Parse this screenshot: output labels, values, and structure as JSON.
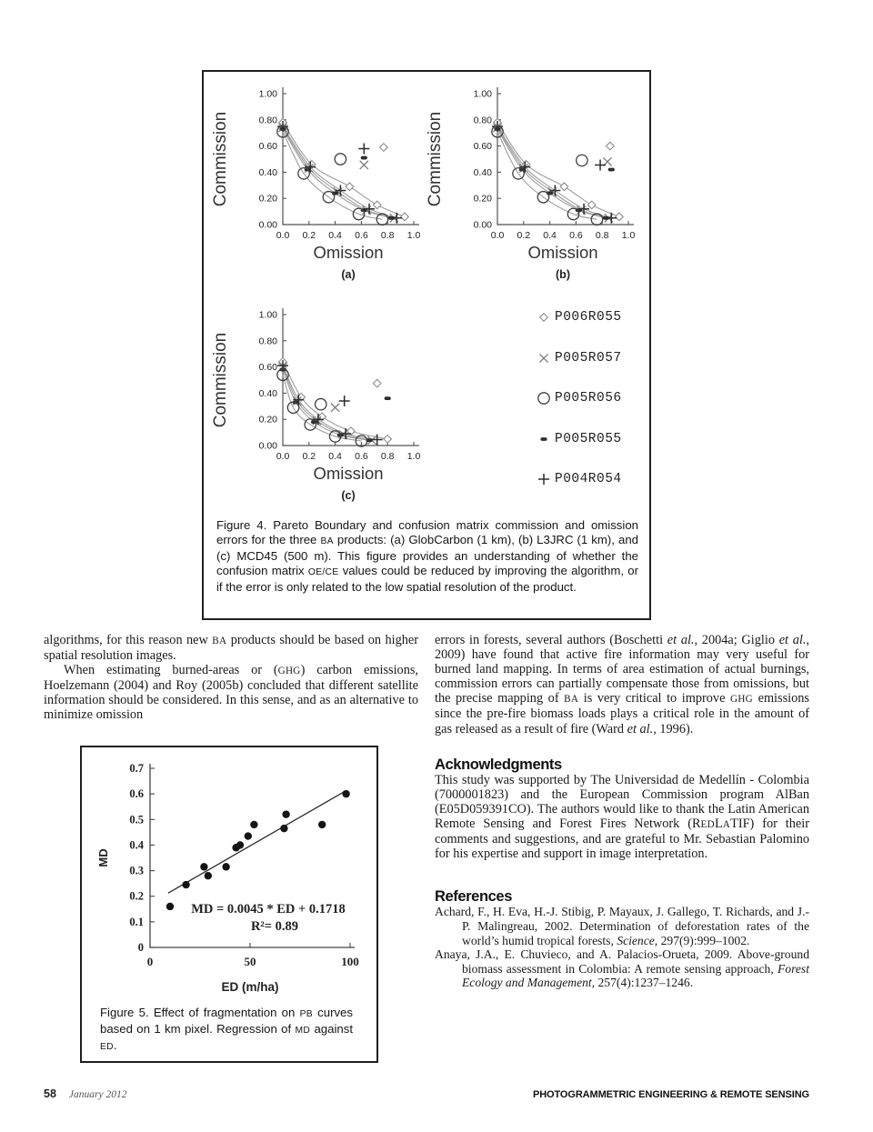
{
  "figure4": {
    "caption_html": "Figure 4. Pareto Boundary and confusion matrix commission and omission errors for the three <span class='sc'>BA</span> products: (a) GlobCarbon (1 km), (b) L3JRC (1 km), and (c) MCD45 (500 m). This figure provides an understanding of whether the confusion matrix <span class='sc'>OE/CE</span> values could be reduced by improving the algorithm, or if the error is only related to the low spatial resolution of the product.",
    "legend": [
      {
        "marker": "diamond",
        "label": "P006R055"
      },
      {
        "marker": "x",
        "label": "P005R057"
      },
      {
        "marker": "circle",
        "label": "P005R056"
      },
      {
        "marker": "bar",
        "label": "P005R055"
      },
      {
        "marker": "plus",
        "label": "P004R054"
      }
    ]
  },
  "figure5": {
    "caption_html": "Figure 5. Effect of fragmentation on <span class='sc'>PB</span> curves based on 1 km pixel. Regression of <span class='sc'>MD</span> against <span class='sc'>ED</span>."
  },
  "chart_data": [
    {
      "id": "fig4a",
      "type": "line",
      "title": "(a)",
      "xlabel": "Omission",
      "ylabel": "Commission",
      "xlim": [
        0,
        1
      ],
      "ylim": [
        0,
        1
      ],
      "x_ticks": [
        "0.0",
        "0.2",
        "0.4",
        "0.6",
        "0.8",
        "1.0"
      ],
      "y_ticks": [
        "0.00",
        "0.20",
        "0.40",
        "0.60",
        "0.80",
        "1.00"
      ],
      "series": [
        {
          "name": "P006R055",
          "marker": "diamond",
          "curve": [
            [
              0,
              0.78
            ],
            [
              0.22,
              0.46
            ],
            [
              0.51,
              0.29
            ],
            [
              0.72,
              0.15
            ],
            [
              0.93,
              0.06
            ]
          ],
          "outlier": [
            0.77,
            0.59
          ]
        },
        {
          "name": "P005R057",
          "marker": "x",
          "curve": [
            [
              0,
              0.74
            ],
            [
              0.2,
              0.43
            ],
            [
              0.42,
              0.25
            ],
            [
              0.64,
              0.11
            ],
            [
              0.85,
              0.05
            ]
          ],
          "outlier": [
            0.62,
            0.455
          ]
        },
        {
          "name": "P005R055",
          "marker": "bar",
          "curve": [
            [
              0,
              0.73
            ],
            [
              0.19,
              0.42
            ],
            [
              0.4,
              0.24
            ],
            [
              0.62,
              0.11
            ],
            [
              0.83,
              0.05
            ]
          ],
          "outlier": [
            0.62,
            0.51
          ]
        },
        {
          "name": "P004R054",
          "marker": "plus",
          "curve": [
            [
              0,
              0.75
            ],
            [
              0.21,
              0.44
            ],
            [
              0.44,
              0.26
            ],
            [
              0.66,
              0.12
            ],
            [
              0.87,
              0.05
            ]
          ],
          "outlier": [
            0.62,
            0.58
          ]
        },
        {
          "name": "P005R056",
          "marker": "circle",
          "curve": [
            [
              0,
              0.71
            ],
            [
              0.16,
              0.39
            ],
            [
              0.35,
              0.21
            ],
            [
              0.58,
              0.08
            ],
            [
              0.76,
              0.04
            ]
          ],
          "outlier": [
            0.44,
            0.5
          ]
        }
      ]
    },
    {
      "id": "fig4b",
      "type": "line",
      "title": "(b)",
      "xlabel": "Omission",
      "ylabel": "Commission",
      "xlim": [
        0,
        1
      ],
      "ylim": [
        0,
        1
      ],
      "x_ticks": [
        "0.0",
        "0.2",
        "0.4",
        "0.6",
        "0.8",
        "1.0"
      ],
      "y_ticks": [
        "0.00",
        "0.20",
        "0.40",
        "0.60",
        "0.80",
        "1.00"
      ],
      "series": [
        {
          "name": "P006R055",
          "marker": "diamond",
          "curve": [
            [
              0,
              0.78
            ],
            [
              0.22,
              0.46
            ],
            [
              0.51,
              0.29
            ],
            [
              0.72,
              0.15
            ],
            [
              0.93,
              0.06
            ]
          ],
          "outlier": [
            0.86,
            0.6
          ]
        },
        {
          "name": "P005R057",
          "marker": "x",
          "curve": [
            [
              0,
              0.74
            ],
            [
              0.2,
              0.43
            ],
            [
              0.42,
              0.25
            ],
            [
              0.64,
              0.11
            ],
            [
              0.85,
              0.05
            ]
          ],
          "outlier": [
            0.84,
            0.48
          ]
        },
        {
          "name": "P005R055",
          "marker": "bar",
          "curve": [
            [
              0,
              0.73
            ],
            [
              0.19,
              0.42
            ],
            [
              0.4,
              0.24
            ],
            [
              0.62,
              0.11
            ],
            [
              0.83,
              0.05
            ]
          ],
          "outlier": [
            0.87,
            0.42
          ]
        },
        {
          "name": "P004R054",
          "marker": "plus",
          "curve": [
            [
              0,
              0.75
            ],
            [
              0.21,
              0.44
            ],
            [
              0.44,
              0.26
            ],
            [
              0.66,
              0.12
            ],
            [
              0.87,
              0.05
            ]
          ],
          "outlier": [
            0.785,
            0.455
          ]
        },
        {
          "name": "P005R056",
          "marker": "circle",
          "curve": [
            [
              0,
              0.71
            ],
            [
              0.16,
              0.39
            ],
            [
              0.35,
              0.21
            ],
            [
              0.58,
              0.08
            ],
            [
              0.76,
              0.04
            ]
          ],
          "outlier": [
            0.645,
            0.49
          ]
        }
      ]
    },
    {
      "id": "fig4c",
      "type": "line",
      "title": "(c)",
      "xlabel": "Omission",
      "ylabel": "Commission",
      "xlim": [
        0,
        1
      ],
      "ylim": [
        0,
        1
      ],
      "x_ticks": [
        "0.0",
        "0.2",
        "0.4",
        "0.6",
        "0.8",
        "1.0"
      ],
      "y_ticks": [
        "0.00",
        "0.20",
        "0.40",
        "0.60",
        "0.80",
        "1.00"
      ],
      "series": [
        {
          "name": "P006R055",
          "marker": "diamond",
          "curve": [
            [
              0,
              0.64
            ],
            [
              0.14,
              0.37
            ],
            [
              0.3,
              0.22
            ],
            [
              0.52,
              0.11
            ],
            [
              0.8,
              0.05
            ]
          ],
          "outlier": [
            0.72,
            0.475
          ]
        },
        {
          "name": "P005R057",
          "marker": "x",
          "curve": [
            [
              0,
              0.6
            ],
            [
              0.11,
              0.34
            ],
            [
              0.26,
              0.19
            ],
            [
              0.46,
              0.085
            ],
            [
              0.68,
              0.04
            ]
          ],
          "outlier": [
            0.4,
            0.29
          ]
        },
        {
          "name": "P005R055",
          "marker": "bar",
          "curve": [
            [
              0,
              0.58
            ],
            [
              0.1,
              0.33
            ],
            [
              0.24,
              0.18
            ],
            [
              0.44,
              0.08
            ],
            [
              0.66,
              0.04
            ]
          ],
          "outlier": [
            0.8,
            0.36
          ]
        },
        {
          "name": "P004R054",
          "marker": "plus",
          "curve": [
            [
              0,
              0.61
            ],
            [
              0.12,
              0.35
            ],
            [
              0.27,
              0.2
            ],
            [
              0.48,
              0.09
            ],
            [
              0.72,
              0.045
            ]
          ],
          "outlier": [
            0.47,
            0.34
          ]
        },
        {
          "name": "P005R056",
          "marker": "circle",
          "curve": [
            [
              0,
              0.54
            ],
            [
              0.08,
              0.29
            ],
            [
              0.21,
              0.16
            ],
            [
              0.4,
              0.07
            ],
            [
              0.6,
              0.035
            ]
          ],
          "outlier": [
            0.29,
            0.315
          ]
        }
      ]
    },
    {
      "id": "fig5",
      "type": "scatter",
      "xlabel": "ED (m/ha)",
      "ylabel": "MD",
      "xlim": [
        0,
        100
      ],
      "ylim": [
        0,
        0.7
      ],
      "x_ticks": [
        "0",
        "50",
        "100"
      ],
      "y_ticks": [
        "0",
        "0.1",
        "0.2",
        "0.3",
        "0.4",
        "0.5",
        "0.6",
        "0.7"
      ],
      "points": [
        [
          10,
          0.16
        ],
        [
          18,
          0.245
        ],
        [
          27,
          0.315
        ],
        [
          29,
          0.28
        ],
        [
          38,
          0.315
        ],
        [
          43,
          0.39
        ],
        [
          45,
          0.4
        ],
        [
          49,
          0.435
        ],
        [
          52,
          0.48
        ],
        [
          67,
          0.465
        ],
        [
          68,
          0.52
        ],
        [
          86,
          0.48
        ],
        [
          98,
          0.6
        ]
      ],
      "regression": {
        "slope": 0.0045,
        "intercept": 0.1718,
        "x_range": [
          9,
          98
        ]
      },
      "annotations": [
        "MD = 0.0045 * ED + 0.1718",
        "R²= 0.89"
      ]
    }
  ],
  "body": {
    "left_p1_html": "algorithms, for this reason new <span class='sc'>BA</span> products should be based on higher spatial resolution images.",
    "left_p2_html": "When estimating burned-areas or (<span class='sc'>GHG</span>) carbon emissions, Hoelzemann (2004) and Roy (2005b) concluded that different satellite information should be considered. In this sense, and as an alternative to minimize omission",
    "right_p1_html": "errors in forests, several authors (Boschetti <i>et al.</i>, 2004a; Giglio <i>et al.</i>, 2009) have found that active fire information may very useful for burned land mapping. In terms of area estimation of actual burnings, commission errors can partially compensate those from omissions, but the precise mapping of <span class='sc'>BA</span> is very critical to improve <span class='sc'>GHG</span> emissions since the pre-fire biomass loads plays a critical role in the amount of gas released as a result of fire (Ward <i>et al.</i>, 1996)."
  },
  "acknowledgments": {
    "heading": "Acknowledgments",
    "text_html": "This study was supported by The Universidad de Medellín - Colombia (7000001823) and the European Commission program AlBan (E05D059391CO). The authors would like to thank the Latin American Remote Sensing and Forest Fires Network (R<span class='sc'>ED</span>L<span class='sc'>A</span>TIF) for their comments and suggestions, and are grateful to Mr. Sebastian Palomino for his expertise and support in image interpretation."
  },
  "references": {
    "heading": "References",
    "items": [
      {
        "html": "Achard, F., H. Eva, H.-J. Stibig, P. Mayaux, J. Gallego, T. Richards, and J.-P. Malingreau, 2002. Determination of deforestation rates of the world’s humid tropical forests, <i>Science</i>, 297(9):999–1002."
      },
      {
        "html": "Anaya, J.A., E. Chuvieco, and A. Palacios-Orueta, 2009. Above-ground biomass assessment in Colombia: A remote sensing approach, <i>Forest Ecology and Management</i>, 257(4):1237–1246."
      }
    ]
  },
  "footer": {
    "page_number": "58",
    "issue_date": "January 2012",
    "journal_name": "PHOTOGRAMMETRIC ENGINEERING & REMOTE SENSING"
  }
}
